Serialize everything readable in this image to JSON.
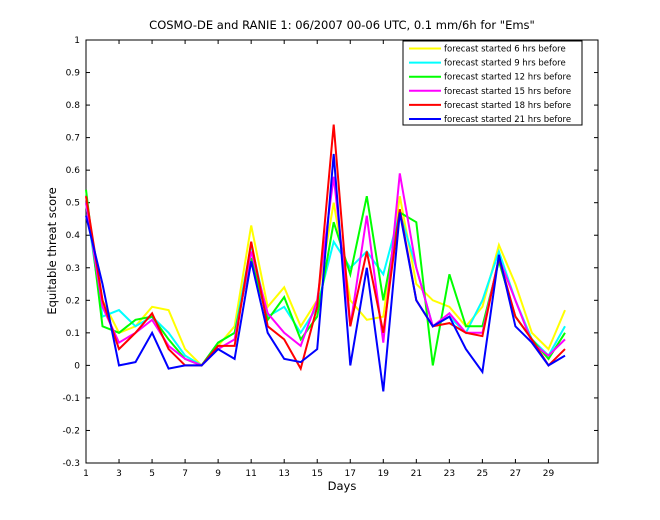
{
  "chart_data": {
    "type": "line",
    "title": "COSMO-DE and RANIE 1: 06/2007 00-06 UTC, 0.1 mm/6h for \"Ems\"",
    "xlabel": "Days",
    "ylabel": "Equitable threat score",
    "xlim": [
      1,
      32
    ],
    "ylim": [
      -0.3,
      1.0
    ],
    "xticks": [
      1,
      3,
      5,
      7,
      9,
      11,
      13,
      15,
      17,
      19,
      21,
      23,
      25,
      27,
      29
    ],
    "yticks": [
      -0.3,
      -0.2,
      -0.1,
      0,
      0.1,
      0.2,
      0.3,
      0.4,
      0.5,
      0.6,
      0.7,
      0.8,
      0.9,
      1
    ],
    "legend_position": "top-right",
    "x": [
      1,
      2,
      3,
      4,
      5,
      6,
      7,
      8,
      9,
      10,
      11,
      12,
      13,
      14,
      15,
      16,
      17,
      18,
      19,
      20,
      21,
      22,
      23,
      24,
      25,
      26,
      27,
      28,
      29,
      30
    ],
    "series": [
      {
        "name": "forecast started 6 hrs before",
        "color": "#ffff00",
        "values": [
          0.5,
          0.2,
          0.1,
          0.12,
          0.18,
          0.17,
          0.05,
          0.0,
          0.06,
          0.12,
          0.43,
          0.18,
          0.24,
          0.12,
          0.2,
          0.5,
          0.2,
          0.14,
          0.15,
          0.52,
          0.25,
          0.2,
          0.18,
          0.12,
          0.18,
          0.37,
          0.25,
          0.1,
          0.05,
          0.17
        ]
      },
      {
        "name": "forecast started 9 hrs before",
        "color": "#00ffff",
        "values": [
          0.5,
          0.15,
          0.17,
          0.12,
          0.15,
          0.1,
          0.03,
          0.0,
          0.07,
          0.1,
          0.37,
          0.15,
          0.18,
          0.1,
          0.18,
          0.38,
          0.3,
          0.35,
          0.28,
          0.47,
          0.3,
          0.12,
          0.15,
          0.1,
          0.2,
          0.35,
          0.2,
          0.08,
          0.03,
          0.12
        ]
      },
      {
        "name": "forecast started 12 hrs before",
        "color": "#00ff00",
        "values": [
          0.54,
          0.12,
          0.1,
          0.14,
          0.15,
          0.08,
          0.02,
          0.0,
          0.07,
          0.1,
          0.33,
          0.14,
          0.21,
          0.08,
          0.15,
          0.44,
          0.28,
          0.52,
          0.2,
          0.47,
          0.44,
          0.0,
          0.28,
          0.12,
          0.12,
          0.32,
          0.15,
          0.08,
          0.02,
          0.1
        ]
      },
      {
        "name": "forecast started 15 hrs before",
        "color": "#ff00ff",
        "values": [
          0.5,
          0.18,
          0.07,
          0.1,
          0.14,
          0.06,
          0.02,
          0.0,
          0.05,
          0.08,
          0.35,
          0.16,
          0.1,
          0.06,
          0.2,
          0.58,
          0.12,
          0.46,
          0.07,
          0.59,
          0.3,
          0.12,
          0.16,
          0.1,
          0.1,
          0.33,
          0.2,
          0.07,
          0.03,
          0.08
        ]
      },
      {
        "name": "forecast started 18 hrs before",
        "color": "#ff0000",
        "values": [
          0.52,
          0.2,
          0.05,
          0.1,
          0.16,
          0.05,
          0.0,
          0.0,
          0.06,
          0.06,
          0.38,
          0.12,
          0.08,
          -0.01,
          0.18,
          0.74,
          0.12,
          0.35,
          0.1,
          0.48,
          0.2,
          0.12,
          0.13,
          0.1,
          0.09,
          0.33,
          0.15,
          0.08,
          0.0,
          0.05
        ]
      },
      {
        "name": "forecast started 21 hrs before",
        "color": "#0000ff",
        "values": [
          0.46,
          0.25,
          0.0,
          0.01,
          0.1,
          -0.01,
          0.0,
          0.0,
          0.05,
          0.02,
          0.32,
          0.1,
          0.02,
          0.01,
          0.05,
          0.65,
          0.0,
          0.3,
          -0.08,
          0.47,
          0.2,
          0.12,
          0.15,
          0.05,
          -0.02,
          0.34,
          0.12,
          0.07,
          0.0,
          0.03
        ]
      }
    ]
  }
}
